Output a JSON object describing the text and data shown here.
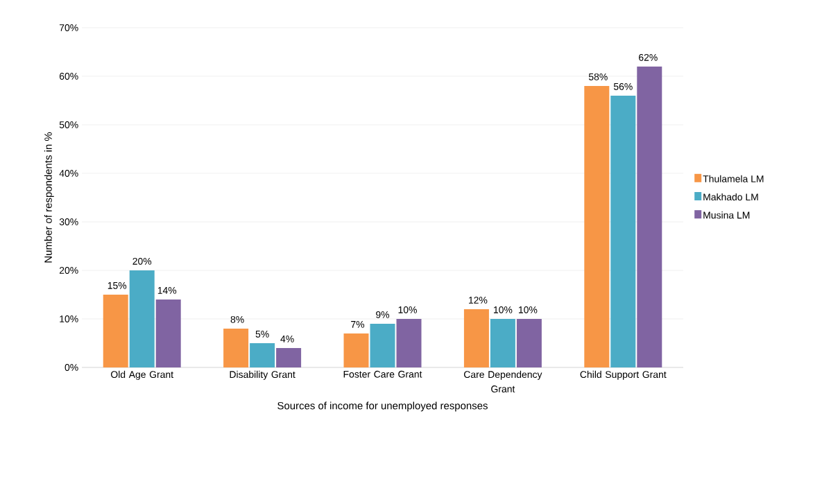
{
  "chart_data": {
    "type": "bar",
    "xlabel": "Sources of income for unemployed responses",
    "ylabel": "Number of respondents in %",
    "categories": [
      "Old Age Grant",
      "Disability Grant",
      "Foster Care Grant",
      "Care Dependency Grant",
      "Child Support Grant"
    ],
    "series": [
      {
        "name": "Thulamela LM",
        "color": "#f79646",
        "values": [
          15,
          8,
          7,
          12,
          58
        ],
        "value_labels": [
          "15%",
          "8%",
          "7%",
          "12%",
          "58%"
        ]
      },
      {
        "name": "Makhado LM",
        "color": "#4bacc6",
        "values": [
          20,
          5,
          9,
          10,
          56
        ],
        "value_labels": [
          "20%",
          "5%",
          "9%",
          "10%",
          "56%"
        ]
      },
      {
        "name": "Musina LM",
        "color": "#8064a2",
        "values": [
          14,
          4,
          10,
          10,
          62
        ],
        "value_labels": [
          "14%",
          "4%",
          "10%",
          "10%",
          "62%"
        ]
      }
    ],
    "ylim": [
      0,
      70
    ],
    "yticks": [
      {
        "value": 0,
        "label": "0%"
      },
      {
        "value": 10,
        "label": "10%"
      },
      {
        "value": 20,
        "label": "20%"
      },
      {
        "value": 30,
        "label": "30%"
      },
      {
        "value": 40,
        "label": "40%"
      },
      {
        "value": 50,
        "label": "50%"
      },
      {
        "value": 60,
        "label": "60%"
      },
      {
        "value": 70,
        "label": "70%"
      }
    ],
    "grid": "y",
    "legend": "right"
  }
}
